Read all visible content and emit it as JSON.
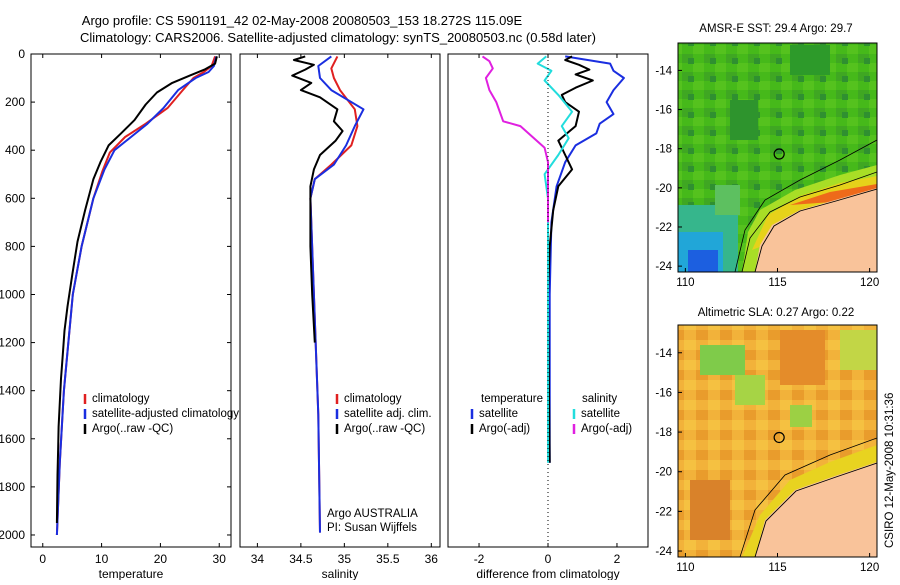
{
  "header": {
    "line1": "Argo profile: CS 5901191_42 02-May-2008 20080503_153 18.272S 115.09E",
    "line2": "Climatology: CARS2006. Satellite-adjusted climatology: synTS_20080503.nc (0.58d later)"
  },
  "side_label": "CSIRO 12-May-2008 10:31:36",
  "colors": {
    "red": "#e02020",
    "blue": "#1a2ee0",
    "black": "#000000",
    "cyan": "#22dddd",
    "magenta": "#e020e0"
  },
  "chart_data": [
    {
      "type": "line",
      "name": "temperature-panel",
      "xlabel": "temperature",
      "xlim": [
        -2,
        32
      ],
      "ylim": [
        0,
        2050
      ],
      "xticks": [
        0,
        10,
        20,
        30
      ],
      "yticks": [
        0,
        200,
        400,
        600,
        800,
        1000,
        1200,
        1400,
        1600,
        1800,
        2000
      ],
      "legend": [
        "climatology",
        "satellite-adjusted climatology",
        "Argo(..raw -QC)"
      ],
      "series": [
        {
          "name": "climatology",
          "color": "red",
          "x": [
            29.3,
            28.7,
            27.4,
            25.6,
            23.8,
            21.2,
            17.5,
            14.0,
            11.4,
            10.1,
            8.6,
            6.6,
            5.1,
            3.6,
            2.9,
            2.4
          ],
          "y": [
            10,
            50,
            75,
            100,
            150,
            225,
            290,
            345,
            410,
            490,
            600,
            800,
            1000,
            1400,
            1700,
            2000
          ]
        },
        {
          "name": "satellite-adjusted climatology",
          "color": "blue",
          "x": [
            29.5,
            29.1,
            28.2,
            26.0,
            23.0,
            20.5,
            17.8,
            15.0,
            12.2,
            10.5,
            8.6,
            6.6,
            5.1,
            3.6,
            2.9,
            2.4
          ],
          "y": [
            10,
            50,
            75,
            100,
            150,
            225,
            290,
            345,
            400,
            480,
            600,
            800,
            1000,
            1400,
            1700,
            2000
          ]
        },
        {
          "name": "Argo raw",
          "color": "black",
          "x": [
            29.6,
            29.3,
            27.5,
            25.0,
            22.0,
            19.4,
            17.5,
            15.6,
            13.3,
            11.2,
            9.8,
            8.6,
            7.2,
            5.9,
            5.0,
            4.2,
            3.7,
            3.4,
            3.1,
            2.9,
            2.7,
            2.6,
            2.5,
            2.45,
            2.4
          ],
          "y": [
            10,
            40,
            65,
            90,
            120,
            160,
            210,
            275,
            330,
            380,
            450,
            520,
            650,
            780,
            920,
            1050,
            1150,
            1250,
            1350,
            1450,
            1550,
            1650,
            1750,
            1850,
            1950
          ]
        }
      ]
    },
    {
      "type": "line",
      "name": "salinity-panel",
      "xlabel": "salinity",
      "xlim": [
        33.8,
        36.1
      ],
      "ylim": [
        0,
        2050
      ],
      "xticks": [
        34,
        34.5,
        35,
        35.5,
        36
      ],
      "xticklabels": [
        "34",
        "34.5",
        "35",
        "35.5",
        "36"
      ],
      "legend": [
        "climatology",
        "satellite adj. clim.",
        "Argo(..raw -QC)"
      ],
      "annotation": [
        "Argo AUSTRALIA",
        "PI: Susan Wijffels"
      ],
      "series": [
        {
          "name": "climatology",
          "color": "red",
          "x": [
            34.92,
            34.85,
            34.88,
            34.95,
            35.12,
            35.15,
            35.08,
            34.85,
            34.66,
            34.61,
            34.65,
            34.7,
            34.72
          ],
          "y": [
            10,
            60,
            100,
            150,
            230,
            300,
            380,
            460,
            520,
            600,
            1000,
            1500,
            1990
          ]
        },
        {
          "name": "satellite adj. clim.",
          "color": "blue",
          "x": [
            34.85,
            34.7,
            34.72,
            34.85,
            35.22,
            35.12,
            35.02,
            34.88,
            34.66,
            34.61,
            34.65,
            34.7,
            34.72
          ],
          "y": [
            10,
            50,
            100,
            150,
            230,
            300,
            380,
            460,
            520,
            600,
            1000,
            1500,
            1990
          ]
        },
        {
          "name": "Argo raw",
          "color": "black",
          "x": [
            34.55,
            34.42,
            34.65,
            34.55,
            34.4,
            34.62,
            34.5,
            34.72,
            34.92,
            34.88,
            34.98,
            34.9,
            34.72,
            34.65,
            34.61,
            34.61,
            34.63,
            34.66
          ],
          "y": [
            10,
            25,
            45,
            65,
            90,
            120,
            150,
            180,
            230,
            280,
            320,
            360,
            420,
            480,
            550,
            800,
            1000,
            1200
          ]
        }
      ]
    },
    {
      "type": "line",
      "name": "difference-panel",
      "xlabel": "difference from climatology",
      "xlim": [
        -2.9,
        2.9
      ],
      "ylim": [
        0,
        2050
      ],
      "xticks": [
        -2,
        0,
        2
      ],
      "legend_left": [
        "temperature",
        "satellite",
        "Argo(-adj)"
      ],
      "legend_right": [
        "salinity",
        "satellite",
        "Argo(-adj)"
      ],
      "series": [
        {
          "name": "temperature satellite",
          "color": "blue",
          "x": [
            0.5,
            1.8,
            1.9,
            2.2,
            1.9,
            1.7,
            1.9,
            1.5,
            1.4,
            0.8,
            0.5,
            0.25,
            0.1,
            0.05,
            0.05,
            0.05
          ],
          "y": [
            10,
            40,
            70,
            100,
            150,
            200,
            250,
            290,
            330,
            380,
            450,
            550,
            700,
            1000,
            1500,
            1700
          ]
        },
        {
          "name": "temperature Argo(-adj)",
          "color": "black",
          "x": [
            0.7,
            0.5,
            0.9,
            1.2,
            0.8,
            1.3,
            0.8,
            0.4,
            0.5,
            0.9,
            0.8,
            0.3,
            0.5,
            0.7,
            0.3,
            0.15,
            0.05,
            0.0,
            0.05
          ],
          "y": [
            10,
            25,
            45,
            65,
            85,
            110,
            140,
            170,
            200,
            240,
            300,
            360,
            420,
            480,
            550,
            650,
            800,
            1000,
            1700
          ]
        },
        {
          "name": "salinity satellite",
          "color": "cyan",
          "x": [
            -0.05,
            -0.3,
            0.1,
            -0.1,
            0.3,
            0.7,
            0.4,
            0.6,
            0.3,
            -0.1,
            0.0,
            0.0,
            0.0
          ],
          "y": [
            10,
            40,
            70,
            110,
            170,
            240,
            300,
            350,
            420,
            500,
            600,
            800,
            1700
          ]
        },
        {
          "name": "salinity Argo(-adj)",
          "color": "magenta",
          "x": [
            -1.9,
            -1.7,
            -1.6,
            -1.8,
            -1.7,
            -1.5,
            -1.3,
            -0.8,
            -0.1,
            0.0,
            0.0
          ],
          "y": [
            10,
            30,
            60,
            100,
            150,
            200,
            280,
            300,
            390,
            450,
            700
          ]
        }
      ]
    },
    {
      "type": "heatmap",
      "name": "sst-map",
      "title": "AMSR-E SST: 29.4 Argo: 29.7",
      "xlim": [
        109.6,
        120.4
      ],
      "ylim": [
        -24.3,
        -12.6
      ],
      "xticks": [
        110,
        115,
        120
      ],
      "yticks": [
        -14,
        -16,
        -18,
        -20,
        -22,
        -24
      ],
      "marker": {
        "lon": 115.09,
        "lat": -18.272
      }
    },
    {
      "type": "heatmap",
      "name": "sla-map",
      "title": "Altimetric SLA: 0.27 Argo: 0.22",
      "xlim": [
        109.6,
        120.4
      ],
      "ylim": [
        -24.3,
        -12.6
      ],
      "xticks": [
        110,
        115,
        120
      ],
      "yticks": [
        -14,
        -16,
        -18,
        -20,
        -22,
        -24
      ],
      "marker": {
        "lon": 115.09,
        "lat": -18.272
      }
    }
  ]
}
